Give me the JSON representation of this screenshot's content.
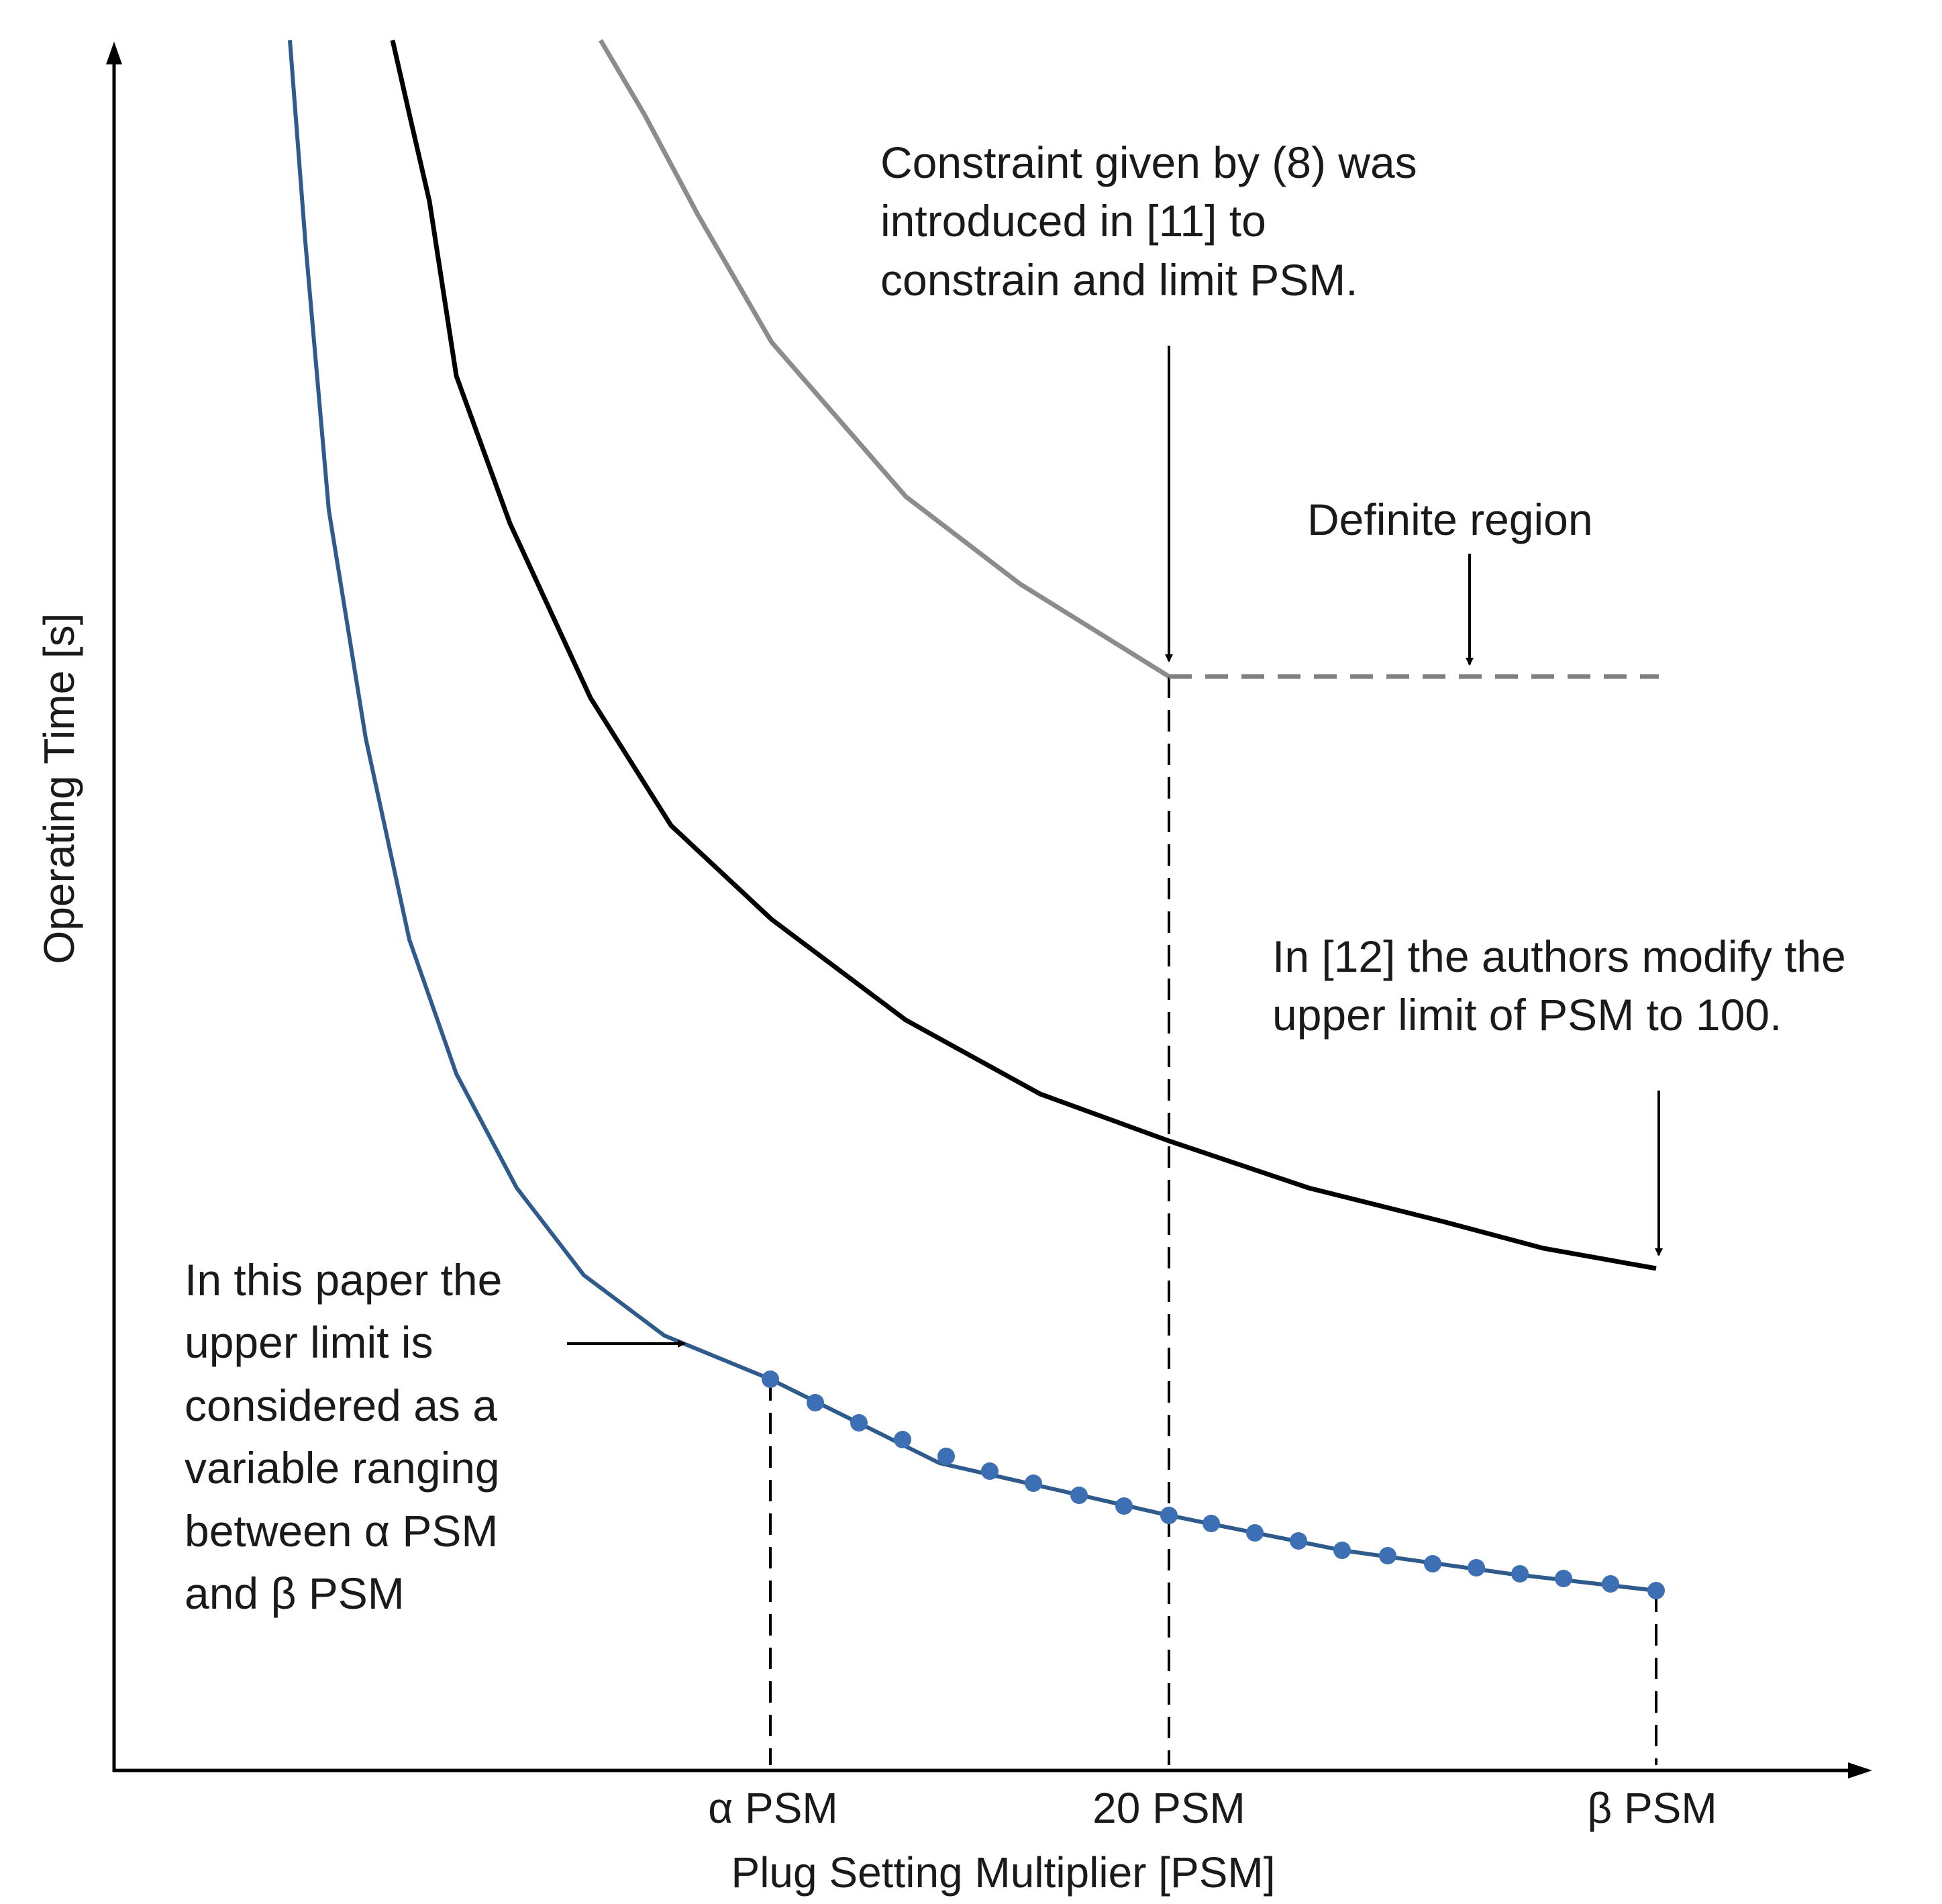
{
  "axes": {
    "x_title": "Plug Setting Multiplier [PSM]",
    "y_title": "Operating Time [s]"
  },
  "ticks": {
    "alpha": "α PSM",
    "twenty": "20 PSM",
    "beta": "β PSM"
  },
  "annotations": {
    "constraint": [
      "Constraint given by (8) was",
      "introduced in [11] to",
      "constrain and limit PSM."
    ],
    "definite": "Definite region",
    "ref12": [
      "In [12] the authors modify the",
      "upper limit of PSM to 100."
    ],
    "paper": [
      "In this paper the",
      "upper limit is",
      "considered as a",
      "variable ranging",
      "between α PSM",
      "and β PSM"
    ]
  },
  "colors": {
    "axis": "#000000",
    "curve_gray": "#8c8c8c",
    "curve_black": "#000000",
    "curve_blue": "#2f5b8c",
    "marker_blue": "#3d6fb5",
    "dashed_gray": "#808080"
  },
  "chart_data": {
    "type": "line",
    "xlabel": "Plug Setting Multiplier [PSM]",
    "ylabel": "Operating Time [s]",
    "x_tick_labels": [
      "α PSM",
      "20 PSM",
      "β PSM"
    ],
    "series": [
      {
        "description": "gray curve ending at 20 PSM, then constant",
        "style": "solid gray curve then dashed gray horizontal line"
      },
      {
        "description": "black curve extending to β PSM",
        "style": "solid black curve"
      },
      {
        "description": "blue curve with circular markers between α PSM and β PSM",
        "style": "solid blue curve with markers"
      }
    ],
    "grid": false,
    "legend": "none"
  }
}
